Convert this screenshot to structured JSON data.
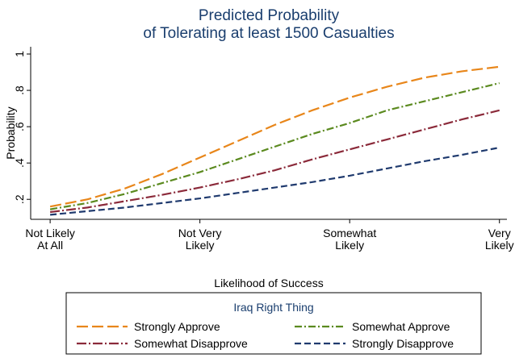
{
  "chart_data": {
    "type": "line",
    "title": [
      "Predicted Probability",
      "of Tolerating at least 1500 Casualties"
    ],
    "xlabel": "Likelihood of Success",
    "ylabel": "Probability",
    "x": [
      1,
      1.25,
      1.5,
      1.75,
      2,
      2.25,
      2.5,
      2.75,
      3,
      3.25,
      3.5,
      3.75,
      4
    ],
    "xlim": [
      0.87,
      4.05
    ],
    "xticks": [
      {
        "value": 1,
        "label": [
          "Not Likely",
          "At All"
        ]
      },
      {
        "value": 2,
        "label": [
          "Not Very",
          "Likely"
        ]
      },
      {
        "value": 3,
        "label": [
          "Somewhat",
          "Likely"
        ]
      },
      {
        "value": 4,
        "label": [
          "Very",
          "Likely"
        ]
      }
    ],
    "ylim": [
      0.09,
      1.04
    ],
    "yticks": [
      {
        "value": 0.2,
        "label": ".2"
      },
      {
        "value": 0.4,
        "label": ".4"
      },
      {
        "value": 0.6,
        "label": ".6"
      },
      {
        "value": 0.8,
        "label": ".8"
      },
      1
    ],
    "legend_title": "Iraq Right Thing",
    "series": [
      {
        "name": "Strongly Approve",
        "color": "#e8861a",
        "dash": "14 5",
        "values": [
          0.16,
          0.2,
          0.26,
          0.34,
          0.43,
          0.52,
          0.61,
          0.69,
          0.76,
          0.82,
          0.87,
          0.905,
          0.93
        ]
      },
      {
        "name": "Somewhat Approve",
        "color": "#5b8a1f",
        "dash": "9 3 2 3",
        "values": [
          0.145,
          0.18,
          0.23,
          0.29,
          0.35,
          0.42,
          0.49,
          0.56,
          0.62,
          0.69,
          0.74,
          0.79,
          0.84
        ]
      },
      {
        "name": "Somewhat Disapprove",
        "color": "#8b2a3a",
        "dash": "12 3 2 3",
        "values": [
          0.13,
          0.155,
          0.19,
          0.225,
          0.265,
          0.31,
          0.36,
          0.42,
          0.475,
          0.53,
          0.585,
          0.64,
          0.69
        ]
      },
      {
        "name": "Strongly Disapprove",
        "color": "#1f3a6e",
        "dash": "8 4",
        "values": [
          0.115,
          0.135,
          0.155,
          0.18,
          0.205,
          0.235,
          0.265,
          0.295,
          0.33,
          0.37,
          0.41,
          0.445,
          0.485
        ]
      }
    ]
  }
}
